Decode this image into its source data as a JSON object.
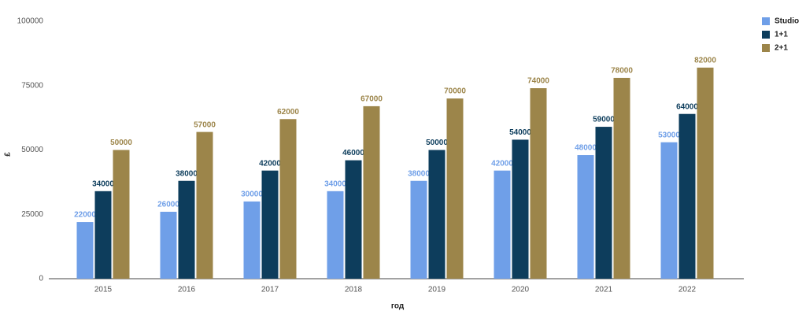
{
  "chart_data": {
    "type": "bar",
    "x_label": "год",
    "y_label": "£",
    "categories": [
      "2015",
      "2016",
      "2017",
      "2018",
      "2019",
      "2020",
      "2021",
      "2022"
    ],
    "series": [
      {
        "name": "Studio",
        "color": "#6f9fe8",
        "values": [
          22000,
          26000,
          30000,
          34000,
          38000,
          42000,
          48000,
          53000
        ]
      },
      {
        "name": "1+1",
        "color": "#0d3d5c",
        "values": [
          34000,
          38000,
          42000,
          46000,
          50000,
          54000,
          59000,
          64000
        ]
      },
      {
        "name": "2+1",
        "color": "#9c854a",
        "values": [
          50000,
          57000,
          62000,
          67000,
          70000,
          74000,
          78000,
          82000
        ]
      }
    ],
    "ylim": [
      0,
      100000
    ],
    "yticks": [
      0,
      25000,
      50000,
      75000,
      100000
    ],
    "grid": false,
    "legend": "top-right"
  }
}
